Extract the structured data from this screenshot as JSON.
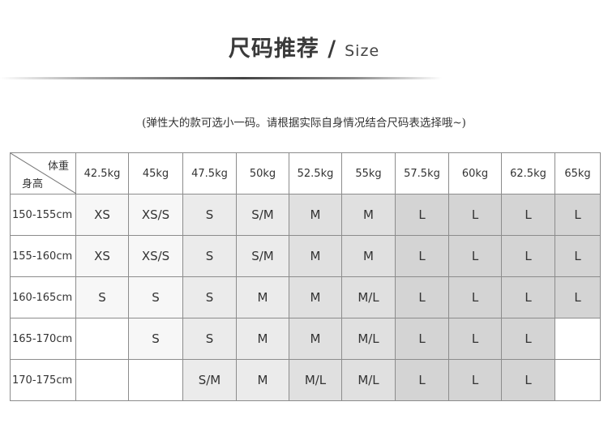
{
  "title": {
    "main": "尺码推荐 /",
    "sub": "Size"
  },
  "note": "(弹性大的款可选小一码。请根据实际自身情况结合尺码表选择哦~)",
  "table": {
    "corner_weight": "体重",
    "corner_height": "身高",
    "weights": [
      "42.5kg",
      "45kg",
      "47.5kg",
      "50kg",
      "52.5kg",
      "55kg",
      "57.5kg",
      "60kg",
      "62.5kg",
      "65kg"
    ],
    "rows": [
      {
        "height": "150-155cm",
        "sizes": [
          "XS",
          "XS/S",
          "S",
          "S/M",
          "M",
          "M",
          "L",
          "L",
          "L",
          "L"
        ]
      },
      {
        "height": "155-160cm",
        "sizes": [
          "XS",
          "XS/S",
          "S",
          "S/M",
          "M",
          "M",
          "L",
          "L",
          "L",
          "L"
        ]
      },
      {
        "height": "160-165cm",
        "sizes": [
          "S",
          "S",
          "S",
          "M",
          "M",
          "M/L",
          "L",
          "L",
          "L",
          "L"
        ]
      },
      {
        "height": "165-170cm",
        "sizes": [
          "",
          "S",
          "S",
          "M",
          "M",
          "M/L",
          "L",
          "L",
          "L",
          ""
        ]
      },
      {
        "height": "170-175cm",
        "sizes": [
          "",
          "",
          "S/M",
          "M",
          "M/L",
          "M/L",
          "L",
          "L",
          "L",
          ""
        ]
      }
    ]
  }
}
